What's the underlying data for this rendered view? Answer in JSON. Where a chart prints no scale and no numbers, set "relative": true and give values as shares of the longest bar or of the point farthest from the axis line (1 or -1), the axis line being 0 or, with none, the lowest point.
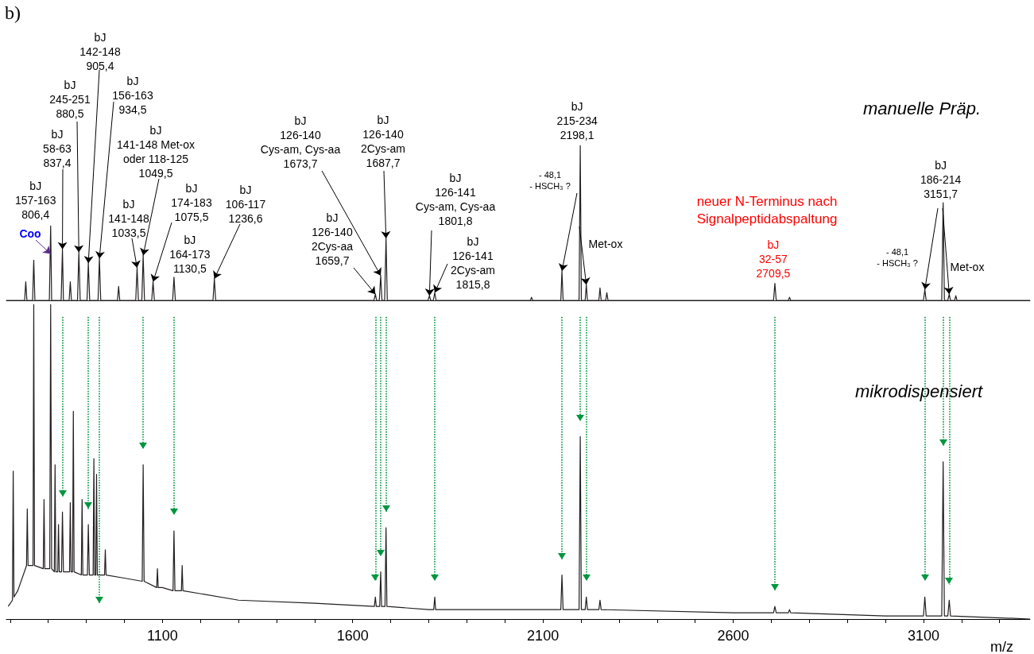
{
  "chart_data": [
    {
      "type": "line",
      "title": "b)",
      "relative": true,
      "xlim": [
        690,
        3380
      ],
      "tick_labels": false,
      "legend": false,
      "grid": false,
      "marker": "none",
      "series": [
        {
          "name": "manuelle Präp.",
          "color": "#231f20",
          "x": [
            690,
            738,
            741,
            744,
            759,
            762,
            765,
            803,
            806.4,
            809,
            834,
            837.4,
            840,
            855,
            858,
            861,
            877,
            880.5,
            884,
            902,
            905.4,
            909,
            931,
            934.5,
            938,
            982,
            985,
            988,
            1030,
            1033.5,
            1037,
            1046,
            1049.5,
            1053,
            1072,
            1075.5,
            1079,
            1127,
            1130.5,
            1134,
            1233,
            1236.6,
            1240,
            1656,
            1659.7,
            1663,
            1670,
            1673.7,
            1677,
            1684,
            1687.7,
            1691,
            1798,
            1801.8,
            1805,
            1812,
            1815.8,
            1819,
            2067,
            2070,
            2073,
            2147,
            2150,
            2153,
            2195,
            2198.1,
            2201,
            2211,
            2214,
            2217,
            2247,
            2250,
            2253,
            2265,
            2268,
            2271,
            2706,
            2709.5,
            2713,
            2745,
            2748,
            2751,
            3100,
            3103.6,
            3107,
            3148,
            3151.7,
            3155,
            3164,
            3167.7,
            3171,
            3182,
            3185,
            3188,
            3380
          ],
          "values": [
            0,
            0,
            0.12,
            0,
            0,
            0.26,
            0,
            0,
            0.48,
            0,
            0,
            0.33,
            0,
            0,
            0.12,
            0,
            0,
            0.31,
            0,
            0,
            0.24,
            0,
            0,
            0.27,
            0,
            0,
            0.09,
            0,
            0,
            0.21,
            0,
            0,
            0.29,
            0,
            0,
            0.12,
            0,
            0,
            0.15,
            0,
            0,
            0.14,
            0,
            0,
            0.04,
            0,
            0,
            0.16,
            0,
            0,
            0.4,
            0,
            0,
            0.03,
            0,
            0,
            0.05,
            0,
            0,
            0.02,
            0,
            0,
            0.19,
            0,
            0,
            1,
            0,
            0,
            0.1,
            0,
            0,
            0.08,
            0,
            0,
            0.05,
            0,
            0,
            0.11,
            0,
            0,
            0.02,
            0,
            0,
            0.07,
            0,
            0,
            0.63,
            0,
            0,
            0.04,
            0,
            0,
            0.03,
            0,
            0
          ]
        }
      ],
      "annotations": [
        {
          "text": "bJ\n157-163\n806,4",
          "x": 806.4,
          "y": 0.48
        },
        {
          "text": "bJ\n58-63\n837,4",
          "x": 837.4,
          "y": 0.33
        },
        {
          "text": "bJ\n245-251\n880,5",
          "x": 880.5,
          "y": 0.31
        },
        {
          "text": "bJ\n142-148\n905,4",
          "x": 905.4,
          "y": 0.24
        },
        {
          "text": "bJ\n156-163\n934,5",
          "x": 934.5,
          "y": 0.27
        },
        {
          "text": "bJ\n141-148 Met-ox\noder 118-125\n1049,5",
          "x": 1049.5,
          "y": 0.29
        },
        {
          "text": "bJ\n141-148\n1033,5",
          "x": 1033.5,
          "y": 0.21
        },
        {
          "text": "bJ\n174-183\n1075,5",
          "x": 1075.5,
          "y": 0.12
        },
        {
          "text": "bJ\n164-173\n1130,5",
          "x": 1130.5,
          "y": 0.15
        },
        {
          "text": "bJ\n106-117\n1236,6",
          "x": 1236.6,
          "y": 0.14
        },
        {
          "text": "bJ\n126-140\nCys-am, Cys-aa\n1673,7",
          "x": 1673.7,
          "y": 0.16
        },
        {
          "text": "bJ\n126-140\n2Cys-aa\n1659,7",
          "x": 1659.7,
          "y": 0.04
        },
        {
          "text": "bJ\n126-140\n2Cys-am\n1687,7",
          "x": 1687.7,
          "y": 0.4
        },
        {
          "text": "bJ\n126-141\nCys-am, Cys-aa\n1801,8",
          "x": 1801.8,
          "y": 0.03
        },
        {
          "text": "bJ\n126-141\n2Cys-am\n1815,8",
          "x": 1815.8,
          "y": 0.05
        },
        {
          "text": "bJ\n215-234\n2198,1",
          "x": 2198.1,
          "y": 1
        },
        {
          "text": "- 48,1\n- HSCH₃ ?",
          "x": 2150,
          "y": 0.19
        },
        {
          "text": "Met-ox",
          "x": 2214,
          "y": 0.1
        },
        "neuer N-Terminus nach\nSignalpeptidabspaltung",
        {
          "text": "bJ\n32-57\n2709,5",
          "x": 2709.5,
          "y": 0.11
        },
        {
          "text": "bJ\n186-214\n3151,7",
          "x": 3151.7,
          "y": 0.63
        },
        {
          "text": "- 48,1\n- HSCH₃ ?",
          "x": 3103.6,
          "y": 0.07
        },
        {
          "text": "Met-ox",
          "x": 3167.7,
          "y": 0.04
        },
        {
          "text": "Coo",
          "x": 806.4,
          "y": 0.3
        }
      ]
    },
    {
      "type": "line",
      "relative": true,
      "xlim": [
        690,
        3380
      ],
      "xlabel": "m/z",
      "legend": false,
      "grid": false,
      "marker": "none",
      "xticks": [
        {
          "value": 700,
          "label": null
        },
        {
          "value": 800,
          "label": null
        },
        {
          "value": 900,
          "label": null
        },
        {
          "value": 1000,
          "label": null
        },
        1100,
        {
          "value": 1200,
          "label": null
        },
        {
          "value": 1300,
          "label": null
        },
        {
          "value": 1400,
          "label": null
        },
        {
          "value": 1500,
          "label": null
        },
        1600,
        {
          "value": 1700,
          "label": null
        },
        {
          "value": 1800,
          "label": null
        },
        {
          "value": 1900,
          "label": null
        },
        {
          "value": 2000,
          "label": null
        },
        2100,
        {
          "value": 2200,
          "label": null
        },
        {
          "value": 2300,
          "label": null
        },
        {
          "value": 2400,
          "label": null
        },
        {
          "value": 2500,
          "label": null
        },
        2600,
        {
          "value": 2700,
          "label": null
        },
        {
          "value": 2800,
          "label": null
        },
        {
          "value": 2900,
          "label": null
        },
        {
          "value": 3000,
          "label": null
        },
        3100,
        {
          "value": 3200,
          "label": null
        },
        {
          "value": 3300,
          "label": null
        }
      ],
      "series": [
        {
          "name": "mikrodispensiert",
          "color": "#231f20",
          "x": [
            695,
            706,
            708,
            710,
            720,
            743,
            745,
            747,
            760,
            762,
            764,
            787,
            789,
            791,
            804,
            806.4,
            809,
            816,
            818,
            820,
            825,
            827,
            829,
            835,
            837.4,
            840,
            856,
            858,
            860,
            864,
            866,
            868,
            887,
            889,
            891,
            903,
            905.4,
            908,
            918,
            920,
            922,
            925,
            927,
            929,
            948,
            950,
            952,
            1000,
            1047,
            1049.5,
            1052,
            1085,
            1087,
            1089,
            1100,
            1128,
            1130.5,
            1133,
            1150,
            1152,
            1154,
            1300,
            1500,
            1657,
            1659.7,
            1662,
            1671,
            1673.7,
            1676,
            1685,
            1687.7,
            1690,
            1800,
            1813,
            1815.8,
            1818,
            2147,
            2150,
            2153,
            2195,
            2198.1,
            2201,
            2211,
            2214,
            2217,
            2247,
            2250,
            2253,
            2600,
            2706,
            2709.5,
            2713,
            2745,
            2748,
            2751,
            3000,
            3100,
            3103.6,
            3107,
            3148,
            3151.7,
            3155,
            3164,
            3167.7,
            3171,
            3380
          ],
          "values": [
            0.04,
            0.06,
            0.47,
            0.07,
            0.09,
            0.17,
            0.35,
            0.17,
            0.17,
            1,
            0.17,
            0.16,
            0.38,
            0.16,
            0.16,
            1,
            0.16,
            0.15,
            0.49,
            0.15,
            0.15,
            0.3,
            0.15,
            0.15,
            0.34,
            0.15,
            0.15,
            0.37,
            0.15,
            0.15,
            0.66,
            0.15,
            0.14,
            0.38,
            0.14,
            0.14,
            0.3,
            0.14,
            0.14,
            0.51,
            0.14,
            0.14,
            0.46,
            0.14,
            0.14,
            0.22,
            0.14,
            0.13,
            0.12,
            0.49,
            0.12,
            0.1,
            0.16,
            0.1,
            0.1,
            0.09,
            0.28,
            0.09,
            0.09,
            0.17,
            0.09,
            0.06,
            0.05,
            0.04,
            0.07,
            0.04,
            0.04,
            0.15,
            0.04,
            0.04,
            0.29,
            0.04,
            0.03,
            0.03,
            0.07,
            0.03,
            0.03,
            0.14,
            0.03,
            0.03,
            0.58,
            0.03,
            0.03,
            0.07,
            0.03,
            0.03,
            0.06,
            0.03,
            0.02,
            0.02,
            0.04,
            0.02,
            0.02,
            0.03,
            0.02,
            0.01,
            0.01,
            0.07,
            0.01,
            0.01,
            0.5,
            0.01,
            0.01,
            0.06,
            0.01,
            0
          ]
        }
      ],
      "ref_lines": [
        {
          "axis": "x",
          "value": 837.4,
          "color": "#009640",
          "line_style": "dotted"
        },
        {
          "axis": "x",
          "value": 905.4,
          "color": "#009640",
          "line_style": "dotted"
        },
        {
          "axis": "x",
          "value": 934.5,
          "color": "#009640",
          "line_style": "dotted"
        },
        {
          "axis": "x",
          "value": 1049.5,
          "color": "#009640",
          "line_style": "dotted"
        },
        {
          "axis": "x",
          "value": 1130.5,
          "color": "#009640",
          "line_style": "dotted"
        },
        {
          "axis": "x",
          "value": 1659.7,
          "color": "#009640",
          "line_style": "dotted"
        },
        {
          "axis": "x",
          "value": 1673.7,
          "color": "#009640",
          "line_style": "dotted"
        },
        {
          "axis": "x",
          "value": 1687.7,
          "color": "#009640",
          "line_style": "dotted"
        },
        {
          "axis": "x",
          "value": 1815.8,
          "color": "#009640",
          "line_style": "dotted"
        },
        {
          "axis": "x",
          "value": 2150,
          "color": "#009640",
          "line_style": "dotted"
        },
        {
          "axis": "x",
          "value": 2198.1,
          "color": "#009640",
          "line_style": "dotted"
        },
        {
          "axis": "x",
          "value": 2214,
          "color": "#009640",
          "line_style": "dotted"
        },
        {
          "axis": "x",
          "value": 2709.5,
          "color": "#009640",
          "line_style": "dotted"
        },
        {
          "axis": "x",
          "value": 3103.6,
          "color": "#009640",
          "line_style": "dotted"
        },
        {
          "axis": "x",
          "value": 3151.7,
          "color": "#009640",
          "line_style": "dotted"
        },
        {
          "axis": "x",
          "value": 3167.7,
          "color": "#009640",
          "line_style": "dotted"
        }
      ]
    }
  ]
}
